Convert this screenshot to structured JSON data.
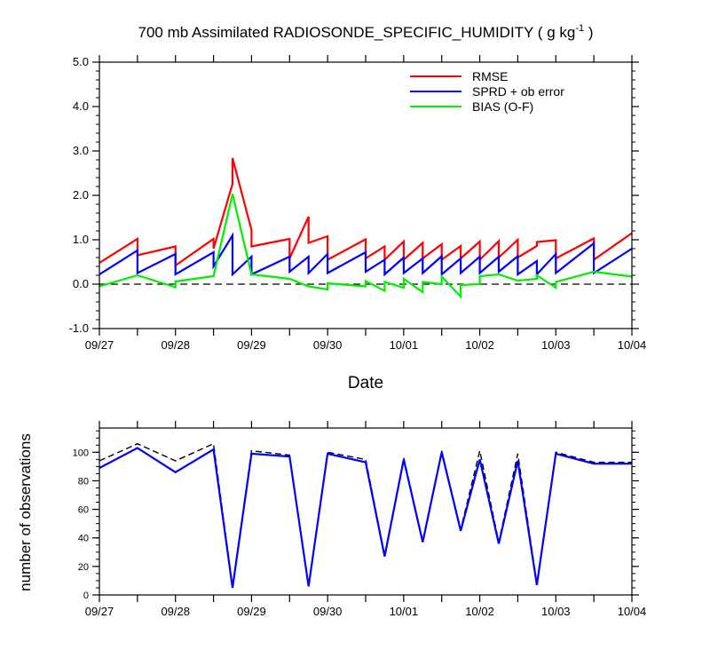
{
  "chart_data": [
    {
      "type": "line",
      "title": "700 mb Assimilated RADIOSONDE_SPECIFIC_HUMIDITY ( g kg",
      "title_unit_exponent": "-1",
      "title_suffix": " )",
      "xlabel": "Date",
      "ylabel": "",
      "ylim": [
        -1.0,
        5.0
      ],
      "ytick_labels": [
        "-1.0",
        "0.0",
        "1.0",
        "2.0",
        "3.0",
        "4.0",
        "5.0"
      ],
      "xlim": [
        0,
        7
      ],
      "xtick_labels": [
        "09/27",
        "09/28",
        "09/29",
        "09/30",
        "10/01",
        "10/02",
        "10/03",
        "10/04"
      ],
      "reference_line": 0,
      "legend_position": "top-right",
      "series": [
        {
          "name": "RMSE",
          "color": "#ff0000",
          "points": [
            [
              0,
              0.48
            ],
            [
              0.5,
              1.02
            ],
            [
              0.5,
              0.65
            ],
            [
              1,
              0.85
            ],
            [
              1,
              0.42
            ],
            [
              1.5,
              1.02
            ],
            [
              1.5,
              0.8
            ],
            [
              1.75,
              2.26
            ],
            [
              1.75,
              2.84
            ],
            [
              2,
              1.22
            ],
            [
              2,
              0.85
            ],
            [
              2.5,
              1.02
            ],
            [
              2.5,
              0.58
            ],
            [
              2.75,
              1.52
            ],
            [
              2.75,
              0.93
            ],
            [
              3,
              1.08
            ],
            [
              3,
              0.55
            ],
            [
              3.5,
              1.01
            ],
            [
              3.5,
              0.58
            ],
            [
              3.75,
              0.85
            ],
            [
              3.75,
              0.55
            ],
            [
              4,
              0.96
            ],
            [
              4,
              0.55
            ],
            [
              4.25,
              0.93
            ],
            [
              4.25,
              0.58
            ],
            [
              4.5,
              0.9
            ],
            [
              4.5,
              0.55
            ],
            [
              4.75,
              0.86
            ],
            [
              4.75,
              0.58
            ],
            [
              5,
              0.96
            ],
            [
              5,
              0.55
            ],
            [
              5.25,
              0.97
            ],
            [
              5.25,
              0.6
            ],
            [
              5.5,
              1.0
            ],
            [
              5.5,
              0.6
            ],
            [
              5.75,
              0.86
            ],
            [
              5.75,
              0.95
            ],
            [
              6,
              0.99
            ],
            [
              6,
              0.58
            ],
            [
              6.5,
              1.03
            ],
            [
              6.5,
              0.55
            ],
            [
              7,
              1.15
            ]
          ]
        },
        {
          "name": "SPRD + ob error",
          "color": "#0000ff",
          "points": [
            [
              0,
              0.22
            ],
            [
              0.5,
              0.76
            ],
            [
              0.5,
              0.25
            ],
            [
              1,
              0.68
            ],
            [
              1,
              0.22
            ],
            [
              1.5,
              0.72
            ],
            [
              1.5,
              0.4
            ],
            [
              1.75,
              1.1
            ],
            [
              1.75,
              0.22
            ],
            [
              2,
              0.62
            ],
            [
              2,
              0.22
            ],
            [
              2.5,
              0.62
            ],
            [
              2.5,
              0.28
            ],
            [
              2.75,
              0.62
            ],
            [
              2.75,
              0.25
            ],
            [
              3,
              0.68
            ],
            [
              3,
              0.25
            ],
            [
              3.5,
              0.72
            ],
            [
              3.5,
              0.28
            ],
            [
              3.75,
              0.55
            ],
            [
              3.75,
              0.22
            ],
            [
              4,
              0.6
            ],
            [
              4,
              0.25
            ],
            [
              4.25,
              0.58
            ],
            [
              4.25,
              0.25
            ],
            [
              4.5,
              0.63
            ],
            [
              4.5,
              0.22
            ],
            [
              4.75,
              0.58
            ],
            [
              4.75,
              0.25
            ],
            [
              5,
              0.62
            ],
            [
              5,
              0.25
            ],
            [
              5.25,
              0.62
            ],
            [
              5.25,
              0.28
            ],
            [
              5.5,
              0.63
            ],
            [
              5.5,
              0.22
            ],
            [
              5.75,
              0.52
            ],
            [
              5.75,
              0.22
            ],
            [
              6,
              0.68
            ],
            [
              6,
              0.25
            ],
            [
              6.5,
              0.92
            ],
            [
              6.5,
              0.25
            ],
            [
              7,
              0.8
            ]
          ]
        },
        {
          "name": "BIAS (O-F)",
          "color": "#00ee00",
          "points": [
            [
              0,
              -0.05
            ],
            [
              0.5,
              0.2
            ],
            [
              1,
              -0.07
            ],
            [
              1,
              0.06
            ],
            [
              1.5,
              0.18
            ],
            [
              1.75,
              2.03
            ],
            [
              2,
              0.22
            ],
            [
              2.5,
              0.12
            ],
            [
              2.75,
              -0.05
            ],
            [
              3,
              -0.12
            ],
            [
              3,
              0.02
            ],
            [
              3.5,
              -0.05
            ],
            [
              3.5,
              0.07
            ],
            [
              3.75,
              -0.15
            ],
            [
              3.75,
              0.05
            ],
            [
              4,
              -0.08
            ],
            [
              4,
              0.12
            ],
            [
              4.25,
              -0.18
            ],
            [
              4.25,
              0.05
            ],
            [
              4.5,
              0.0
            ],
            [
              4.5,
              0.17
            ],
            [
              4.75,
              -0.28
            ],
            [
              4.75,
              -0.02
            ],
            [
              5,
              0.0
            ],
            [
              5,
              0.18
            ],
            [
              5.25,
              0.22
            ],
            [
              5.5,
              0.08
            ],
            [
              5.75,
              0.12
            ],
            [
              5.75,
              0.2
            ],
            [
              6,
              -0.08
            ],
            [
              6,
              0.05
            ],
            [
              6.5,
              0.28
            ],
            [
              7,
              0.17
            ]
          ]
        }
      ]
    },
    {
      "type": "line",
      "ylabel": "number of observations",
      "ylim": [
        0,
        117
      ],
      "ytick_labels": [
        "0",
        "20",
        "40",
        "60",
        "80",
        "100"
      ],
      "xlim": [
        0,
        7
      ],
      "xtick_labels": [
        "09/27",
        "09/28",
        "09/29",
        "09/30",
        "10/01",
        "10/02",
        "10/03",
        "10/04"
      ],
      "series": [
        {
          "style": "dashed",
          "color": "#000000",
          "points": [
            [
              0,
              94
            ],
            [
              0.5,
              106
            ],
            [
              1,
              94
            ],
            [
              1.5,
              106
            ],
            [
              1.75,
              6
            ],
            [
              2,
              101
            ],
            [
              2.5,
              98
            ],
            [
              2.75,
              6
            ],
            [
              3,
              100
            ],
            [
              3.5,
              95
            ],
            [
              3.75,
              28
            ],
            [
              4,
              96
            ],
            [
              4.25,
              38
            ],
            [
              4.5,
              101
            ],
            [
              4.75,
              46
            ],
            [
              5,
              101
            ],
            [
              5.25,
              37
            ],
            [
              5.5,
              99
            ],
            [
              5.75,
              8
            ],
            [
              6,
              100
            ],
            [
              6.5,
              93
            ],
            [
              7,
              93
            ]
          ]
        },
        {
          "style": "solid",
          "color": "#0000ff",
          "points": [
            [
              0,
              89
            ],
            [
              0.5,
              103
            ],
            [
              1,
              86
            ],
            [
              1.5,
              102
            ],
            [
              1.75,
              5
            ],
            [
              2,
              99
            ],
            [
              2.5,
              97
            ],
            [
              2.75,
              6
            ],
            [
              3,
              99
            ],
            [
              3.5,
              93
            ],
            [
              3.75,
              27
            ],
            [
              4,
              95
            ],
            [
              4.25,
              37
            ],
            [
              4.5,
              100
            ],
            [
              4.75,
              45
            ],
            [
              5,
              95
            ],
            [
              5.25,
              36
            ],
            [
              5.5,
              94
            ],
            [
              5.75,
              7
            ],
            [
              6,
              99
            ],
            [
              6.5,
              92
            ],
            [
              7,
              92
            ]
          ]
        }
      ]
    }
  ]
}
